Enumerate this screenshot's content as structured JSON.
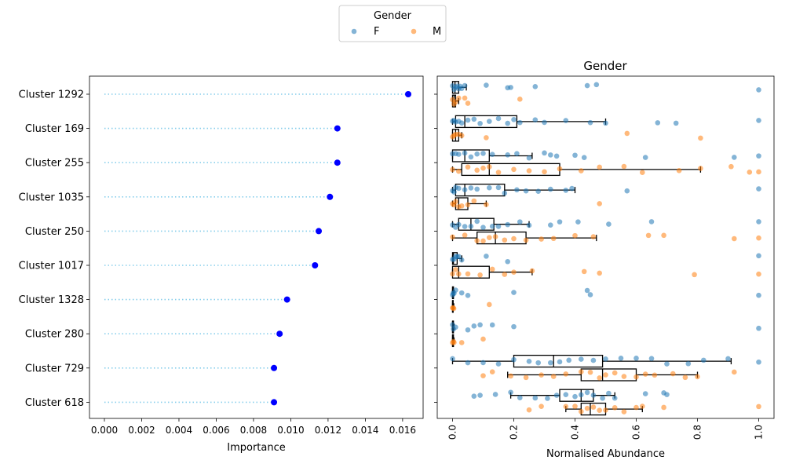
{
  "legend": {
    "title": "Gender",
    "placement": "top-center",
    "entries": [
      {
        "label": "F",
        "color": "#1f77b4"
      },
      {
        "label": "M",
        "color": "#ff7f0e"
      }
    ]
  },
  "chart_data": [
    {
      "type": "lollipop",
      "title": "",
      "xlabel": "Importance",
      "ylabel": "",
      "xlim": [
        -0.0008,
        0.0171
      ],
      "xticks": [
        "0.000",
        "0.002",
        "0.004",
        "0.006",
        "0.008",
        "0.010",
        "0.012",
        "0.014",
        "0.016"
      ],
      "grid": false,
      "marker_color": "#0000ff",
      "line_color": "#87ceeb",
      "categories": [
        "Cluster 1292",
        "Cluster 169",
        "Cluster 255",
        "Cluster 1035",
        "Cluster 250",
        "Cluster 1017",
        "Cluster 1328",
        "Cluster 280",
        "Cluster 729",
        "Cluster 618"
      ],
      "values": [
        0.0163,
        0.0125,
        0.0125,
        0.0121,
        0.0115,
        0.0113,
        0.0098,
        0.0094,
        0.0091,
        0.0091
      ]
    },
    {
      "type": "box_strip",
      "title": "Gender",
      "xlabel": "Normalised Abundance",
      "ylabel": "",
      "xlim": [
        -0.05,
        1.05
      ],
      "xticks": [
        "0.0",
        "0.2",
        "0.4",
        "0.6",
        "0.8",
        "1.0"
      ],
      "grid": false,
      "categories": [
        "Cluster 1292",
        "Cluster 169",
        "Cluster 255",
        "Cluster 1035",
        "Cluster 250",
        "Cluster 1017",
        "Cluster 1328",
        "Cluster 280",
        "Cluster 729",
        "Cluster 618"
      ],
      "groups": [
        {
          "name": "F",
          "color": "#1f77b4",
          "boxes": [
            {
              "wlo": 0.0,
              "q1": 0.0,
              "med": 0.008,
              "q3": 0.02,
              "whi": 0.045
            },
            {
              "wlo": 0.0,
              "q1": 0.01,
              "med": 0.04,
              "q3": 0.21,
              "whi": 0.5
            },
            {
              "wlo": 0.0,
              "q1": 0.0,
              "med": 0.04,
              "q3": 0.12,
              "whi": 0.26
            },
            {
              "wlo": 0.0,
              "q1": 0.01,
              "med": 0.04,
              "q3": 0.17,
              "whi": 0.4
            },
            {
              "wlo": 0.0,
              "q1": 0.02,
              "med": 0.06,
              "q3": 0.135,
              "whi": 0.25
            },
            {
              "wlo": 0.0,
              "q1": 0.0,
              "med": 0.003,
              "q3": 0.015,
              "whi": 0.03
            },
            {
              "wlo": 0.0,
              "q1": 0.0,
              "med": 0.0,
              "q3": 0.003,
              "whi": 0.005
            },
            {
              "wlo": 0.0,
              "q1": 0.0,
              "med": 0.0,
              "q3": 0.003,
              "whi": 0.005
            },
            {
              "wlo": 0.0,
              "q1": 0.2,
              "med": 0.33,
              "q3": 0.49,
              "whi": 0.91
            },
            {
              "wlo": 0.19,
              "q1": 0.35,
              "med": 0.42,
              "q3": 0.46,
              "whi": 0.53
            }
          ],
          "points": [
            [
              0.0,
              0.005,
              0.01,
              0.015,
              0.02,
              0.025,
              0.03,
              0.04,
              0.11,
              0.18,
              0.19,
              0.27,
              0.44,
              0.47,
              1.0
            ],
            [
              0.0,
              0.005,
              0.01,
              0.02,
              0.03,
              0.05,
              0.07,
              0.09,
              0.12,
              0.15,
              0.18,
              0.2,
              0.22,
              0.27,
              0.3,
              0.37,
              0.45,
              0.5,
              0.67,
              0.73,
              1.0
            ],
            [
              0.0,
              0.01,
              0.02,
              0.04,
              0.06,
              0.08,
              0.1,
              0.13,
              0.18,
              0.21,
              0.25,
              0.3,
              0.32,
              0.34,
              0.4,
              0.43,
              0.63,
              0.92,
              1.0
            ],
            [
              0.0,
              0.005,
              0.01,
              0.02,
              0.04,
              0.06,
              0.08,
              0.12,
              0.15,
              0.17,
              0.21,
              0.24,
              0.28,
              0.32,
              0.37,
              0.39,
              0.57,
              1.0
            ],
            [
              0.0,
              0.01,
              0.02,
              0.04,
              0.06,
              0.08,
              0.1,
              0.13,
              0.15,
              0.18,
              0.22,
              0.25,
              0.32,
              0.35,
              0.41,
              0.51,
              0.65,
              1.0
            ],
            [
              0.0,
              0.005,
              0.01,
              0.015,
              0.02,
              0.03,
              0.11,
              0.18,
              1.0
            ],
            [
              0.0,
              0.002,
              0.005,
              0.01,
              0.03,
              0.05,
              0.2,
              0.44,
              0.45,
              1.0
            ],
            [
              0.0,
              0.003,
              0.01,
              0.05,
              0.07,
              0.09,
              0.13,
              0.2,
              1.0
            ],
            [
              0.0,
              0.05,
              0.1,
              0.15,
              0.2,
              0.25,
              0.28,
              0.32,
              0.35,
              0.38,
              0.42,
              0.46,
              0.5,
              0.55,
              0.6,
              0.65,
              0.7,
              0.77,
              0.82,
              0.9,
              1.0
            ],
            [
              0.07,
              0.09,
              0.14,
              0.19,
              0.22,
              0.27,
              0.31,
              0.34,
              0.37,
              0.4,
              0.42,
              0.44,
              0.46,
              0.49,
              0.51,
              0.53,
              0.63,
              0.69,
              0.7
            ]
          ]
        },
        {
          "name": "M",
          "color": "#ff7f0e",
          "boxes": [
            {
              "wlo": 0.0,
              "q1": 0.0,
              "med": 0.005,
              "q3": 0.01,
              "whi": 0.02
            },
            {
              "wlo": 0.0,
              "q1": 0.0,
              "med": 0.01,
              "q3": 0.02,
              "whi": 0.03
            },
            {
              "wlo": 0.0,
              "q1": 0.03,
              "med": 0.12,
              "q3": 0.35,
              "whi": 0.81
            },
            {
              "wlo": 0.0,
              "q1": 0.01,
              "med": 0.02,
              "q3": 0.05,
              "whi": 0.11
            },
            {
              "wlo": 0.0,
              "q1": 0.08,
              "med": 0.14,
              "q3": 0.24,
              "whi": 0.47
            },
            {
              "wlo": 0.0,
              "q1": 0.0,
              "med": 0.02,
              "q3": 0.12,
              "whi": 0.26
            },
            {
              "wlo": 0.0,
              "q1": 0.0,
              "med": 0.0,
              "q3": 0.002,
              "whi": 0.004
            },
            {
              "wlo": 0.0,
              "q1": 0.0,
              "med": 0.0,
              "q3": 0.003,
              "whi": 0.005
            },
            {
              "wlo": 0.18,
              "q1": 0.42,
              "med": 0.49,
              "q3": 0.6,
              "whi": 0.8
            },
            {
              "wlo": 0.37,
              "q1": 0.42,
              "med": 0.45,
              "q3": 0.5,
              "whi": 0.62
            }
          ],
          "points": [
            [
              0.0,
              0.005,
              0.01,
              0.02,
              0.04,
              0.05,
              0.22
            ],
            [
              0.0,
              0.005,
              0.01,
              0.02,
              0.03,
              0.11,
              0.57,
              0.81
            ],
            [
              0.0,
              0.02,
              0.05,
              0.08,
              0.1,
              0.12,
              0.15,
              0.2,
              0.25,
              0.3,
              0.35,
              0.42,
              0.48,
              0.56,
              0.62,
              0.74,
              0.81,
              0.91,
              0.97,
              1.0
            ],
            [
              0.0,
              0.005,
              0.01,
              0.02,
              0.03,
              0.05,
              0.07,
              0.11,
              0.48
            ],
            [
              0.0,
              0.04,
              0.08,
              0.1,
              0.12,
              0.14,
              0.17,
              0.2,
              0.24,
              0.29,
              0.33,
              0.4,
              0.46,
              0.64,
              0.69,
              0.92,
              1.0
            ],
            [
              0.0,
              0.01,
              0.02,
              0.05,
              0.09,
              0.13,
              0.17,
              0.2,
              0.26,
              0.43,
              0.48,
              0.79,
              1.0
            ],
            [
              0.0,
              0.002,
              0.004,
              0.12
            ],
            [
              0.0,
              0.003,
              0.005,
              0.03,
              0.1
            ],
            [
              0.1,
              0.13,
              0.19,
              0.24,
              0.29,
              0.33,
              0.37,
              0.42,
              0.45,
              0.48,
              0.5,
              0.53,
              0.56,
              0.6,
              0.63,
              0.66,
              0.72,
              0.76,
              0.8,
              0.92
            ],
            [
              0.25,
              0.29,
              0.37,
              0.4,
              0.42,
              0.44,
              0.46,
              0.48,
              0.5,
              0.53,
              0.56,
              0.6,
              0.62,
              0.69,
              1.0
            ]
          ]
        }
      ]
    }
  ]
}
